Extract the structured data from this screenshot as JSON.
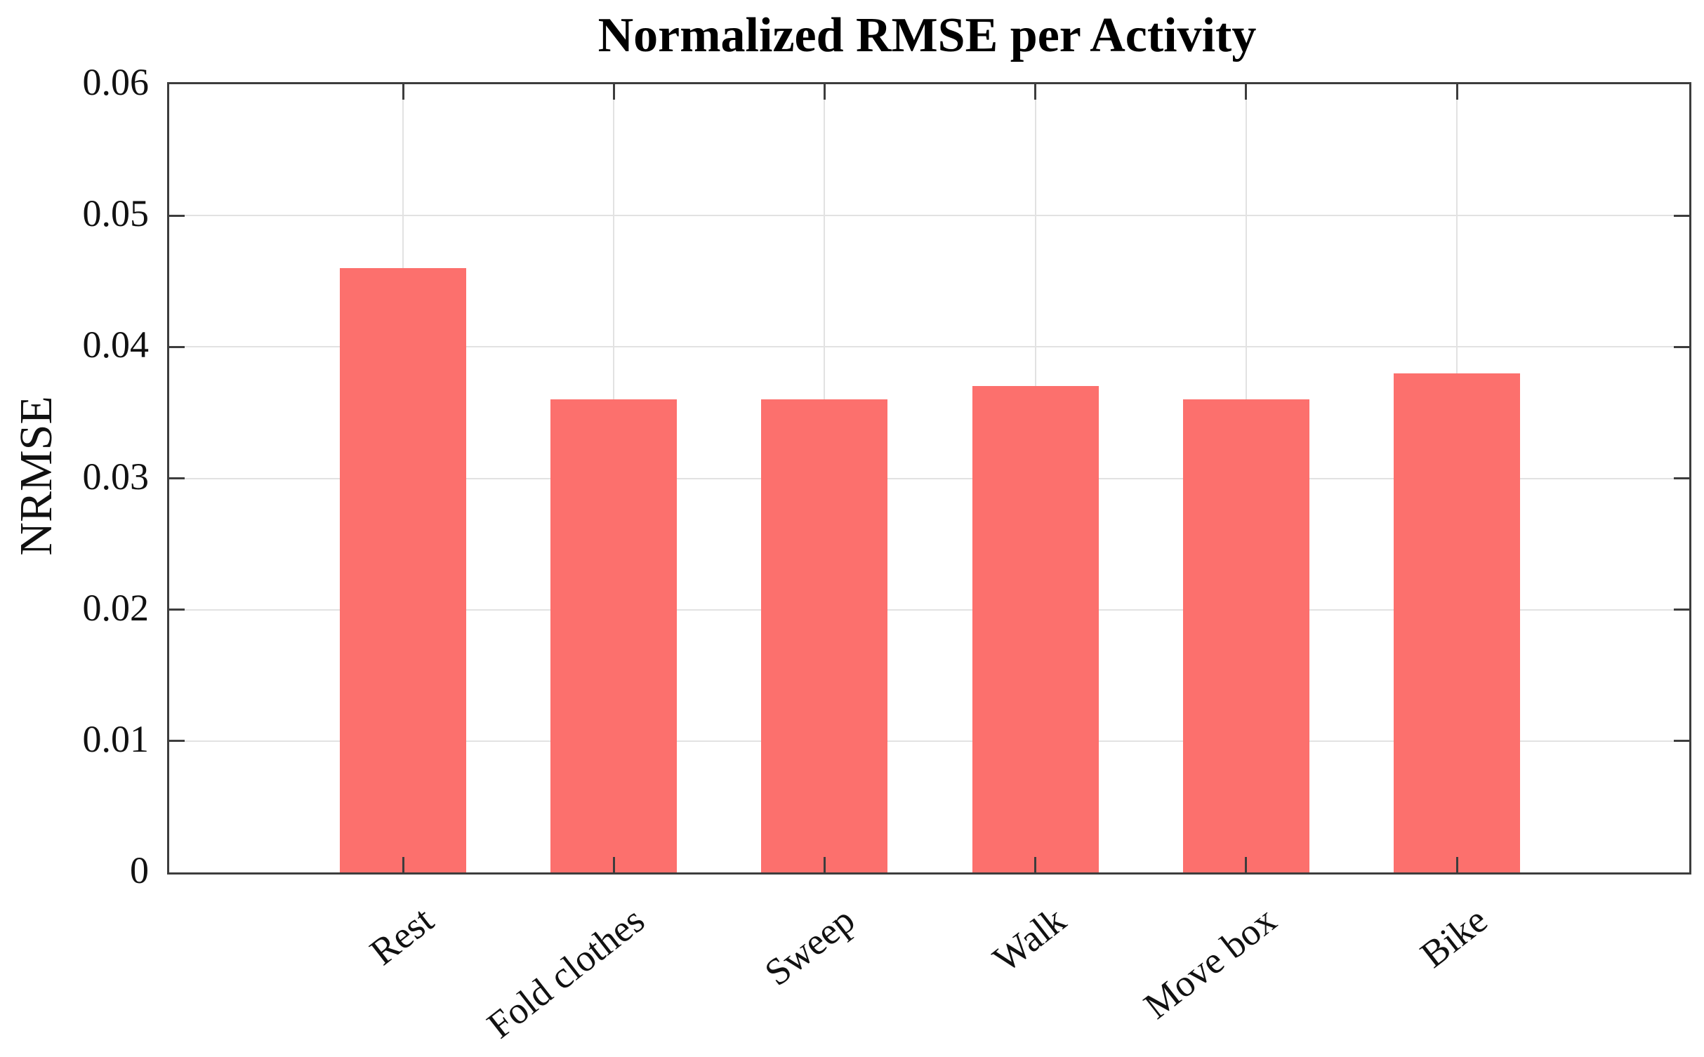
{
  "chart_data": {
    "type": "bar",
    "title": "Normalized RMSE per Activity",
    "xlabel": "",
    "ylabel": "NRMSE",
    "categories": [
      "Rest",
      "Fold clothes",
      "Sweep",
      "Walk",
      "Move box",
      "Bike"
    ],
    "values": [
      0.046,
      0.036,
      0.036,
      0.037,
      0.036,
      0.038
    ],
    "ylim": [
      0,
      0.06
    ],
    "yticks": [
      0,
      0.01,
      0.02,
      0.03,
      0.04,
      0.05,
      0.06
    ],
    "ytick_labels": [
      "0",
      "0.01",
      "0.02",
      "0.03",
      "0.04",
      "0.05",
      "0.06"
    ],
    "grid": true,
    "legend": "none",
    "x_label_rotation_deg": -38,
    "colors": {
      "bar_fill": "#fc706d",
      "axis": "#3d3d3d",
      "grid": "#e2e2e2",
      "text": "#111111",
      "background": "#ffffff"
    }
  }
}
